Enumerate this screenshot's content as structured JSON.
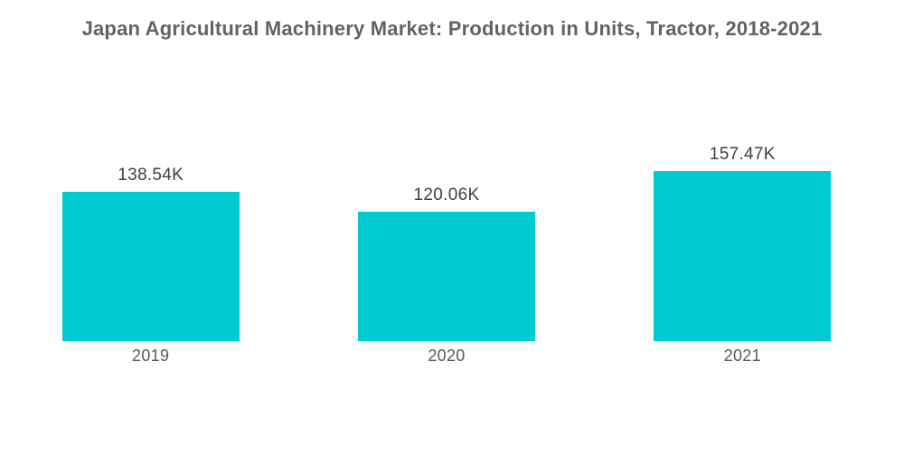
{
  "header": {
    "title": "Japan Agricultural Machinery Market: Production in Units, Tractor, 2018-2021"
  },
  "chart_data": {
    "type": "bar",
    "title": "Japan Agricultural Machinery Market: Production in Units, Tractor, 2018-2021",
    "categories": [
      "2019",
      "2020",
      "2021"
    ],
    "values": [
      138.54,
      120.06,
      157.47
    ],
    "value_unit": "K",
    "value_labels": [
      "138.54K",
      "120.06K",
      "157.47K"
    ],
    "xlabel": "",
    "ylabel": "",
    "ylim": [
      0,
      157.47
    ],
    "grid": false,
    "legend": false,
    "axes_visible": false,
    "bar_color": "#00CBD2",
    "background_color": "#ffffff",
    "title_color": "#626366",
    "value_label_color": "#404040",
    "category_label_color": "#595959"
  }
}
